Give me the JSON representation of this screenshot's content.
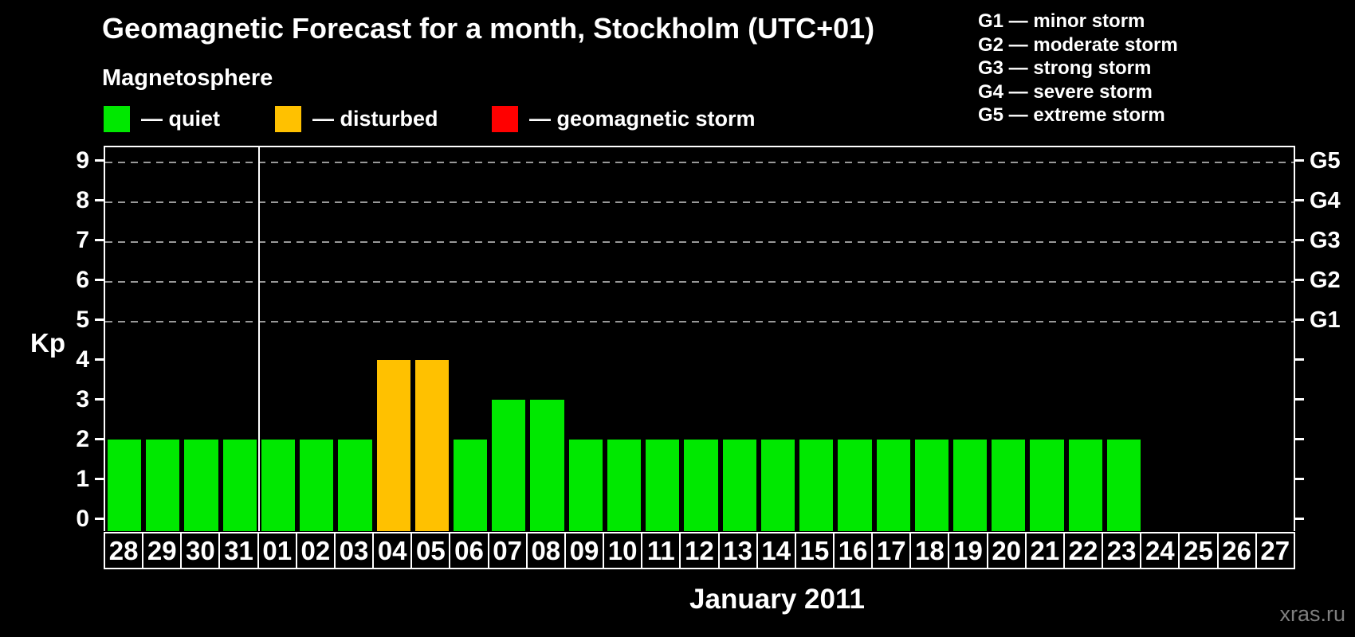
{
  "title": "Geomagnetic Forecast for a month, Stockholm (UTC+01)",
  "subtitle": "Magnetosphere",
  "watermark": "xras.ru",
  "colors": {
    "quiet": "#00e800",
    "disturbed": "#ffc100",
    "storm": "#ff0000",
    "grid": "#999999",
    "axis": "#ffffff",
    "background": "#000000",
    "watermark": "#7f7f7f"
  },
  "legend": [
    {
      "key": "quiet",
      "label": "— quiet"
    },
    {
      "key": "disturbed",
      "label": "— disturbed"
    },
    {
      "key": "storm",
      "label": "— geomagnetic storm"
    }
  ],
  "storm_scale": [
    {
      "level": "G1",
      "label": "G1 — minor storm"
    },
    {
      "level": "G2",
      "label": "G2 — moderate storm"
    },
    {
      "level": "G3",
      "label": "G3 — strong storm"
    },
    {
      "level": "G4",
      "label": "G4 — severe storm"
    },
    {
      "level": "G5",
      "label": "G5 — extreme storm"
    }
  ],
  "axes": {
    "y_label": "Kp",
    "y_ticks": [
      0,
      1,
      2,
      3,
      4,
      5,
      6,
      7,
      8,
      9
    ],
    "grid_levels": [
      5,
      6,
      7,
      8,
      9
    ],
    "right_labels": [
      {
        "label": "G1",
        "kp": 5
      },
      {
        "label": "G2",
        "kp": 6
      },
      {
        "label": "G3",
        "kp": 7
      },
      {
        "label": "G4",
        "kp": 8
      },
      {
        "label": "G5",
        "kp": 9
      }
    ],
    "x_label": "January 2011"
  },
  "chart_data": {
    "type": "bar",
    "title": "Geomagnetic Forecast for a month, Stockholm (UTC+01)",
    "xlabel": "January 2011",
    "ylabel": "Kp",
    "ylim": [
      0,
      9
    ],
    "grid": "dashed horizontal lines at Kp 5-9 (G1-G5)",
    "legend_position": "top-left",
    "categories": [
      "28",
      "29",
      "30",
      "31",
      "01",
      "02",
      "03",
      "04",
      "05",
      "06",
      "07",
      "08",
      "09",
      "10",
      "11",
      "12",
      "13",
      "14",
      "15",
      "16",
      "17",
      "18",
      "19",
      "20",
      "21",
      "22",
      "23",
      "24",
      "25",
      "26",
      "27"
    ],
    "values": [
      2,
      2,
      2,
      2,
      2,
      2,
      2,
      4,
      4,
      2,
      3,
      3,
      2,
      2,
      2,
      2,
      2,
      2,
      2,
      2,
      2,
      2,
      2,
      2,
      2,
      2,
      2,
      0,
      0,
      0,
      0
    ],
    "statuses": [
      "quiet",
      "quiet",
      "quiet",
      "quiet",
      "quiet",
      "quiet",
      "quiet",
      "disturbed",
      "disturbed",
      "quiet",
      "quiet",
      "quiet",
      "quiet",
      "quiet",
      "quiet",
      "quiet",
      "quiet",
      "quiet",
      "quiet",
      "quiet",
      "quiet",
      "quiet",
      "quiet",
      "quiet",
      "quiet",
      "quiet",
      "quiet",
      "none",
      "none",
      "none",
      "none"
    ],
    "month_boundary_after": "31"
  }
}
